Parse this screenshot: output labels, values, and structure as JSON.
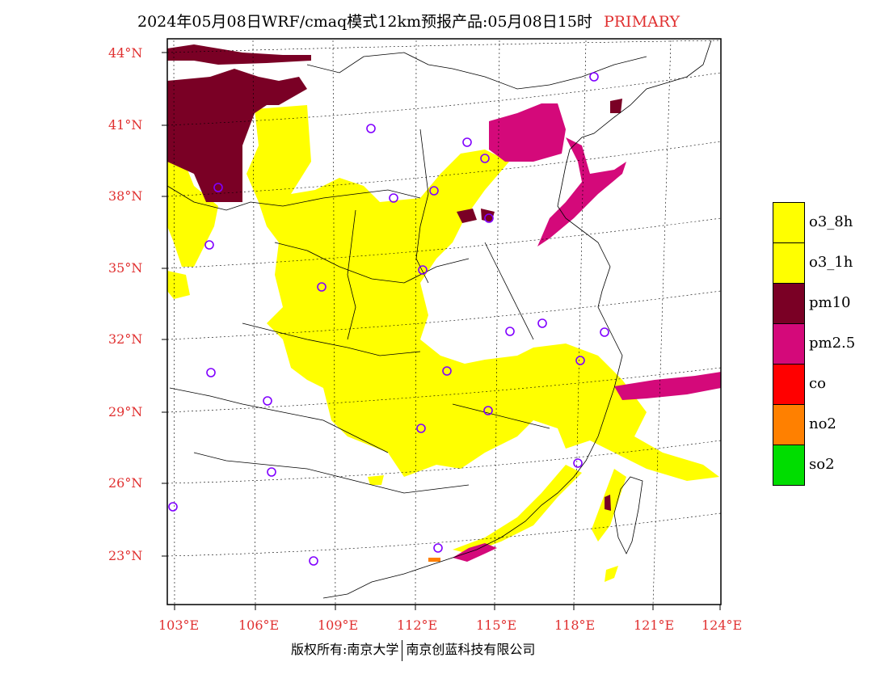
{
  "title": {
    "main": "2024年05月08日WRF/cmaq模式12km预报产品:05月08日15时",
    "tag": "PRIMARY"
  },
  "axes": {
    "lat_labels": [
      "44°N",
      "41°N",
      "38°N",
      "35°N",
      "32°N",
      "29°N",
      "26°N",
      "23°N"
    ],
    "lon_labels": [
      "103°E",
      "106°E",
      "109°E",
      "112°E",
      "115°E",
      "118°E",
      "121°E",
      "124°E"
    ]
  },
  "legend": {
    "items": [
      {
        "label": "o3_8h",
        "color": "#ffff00"
      },
      {
        "label": "o3_1h",
        "color": "#ffff00"
      },
      {
        "label": "pm10",
        "color": "#7a0025"
      },
      {
        "label": "pm2.5",
        "color": "#d4097a"
      },
      {
        "label": "co",
        "color": "#ff0000"
      },
      {
        "label": "no2",
        "color": "#ff8000"
      },
      {
        "label": "so2",
        "color": "#00dd00"
      }
    ]
  },
  "footer": {
    "left": "版权所有:南京大学",
    "right": "南京创蓝科技有限公司"
  },
  "colors": {
    "axis_label": "#e03030",
    "station_marker": "#8000ff",
    "o3": "#ffff00",
    "pm10": "#7a0025",
    "pm25": "#d4097a",
    "no2": "#ff8000"
  },
  "icons": {
    "station": "circle-marker"
  }
}
